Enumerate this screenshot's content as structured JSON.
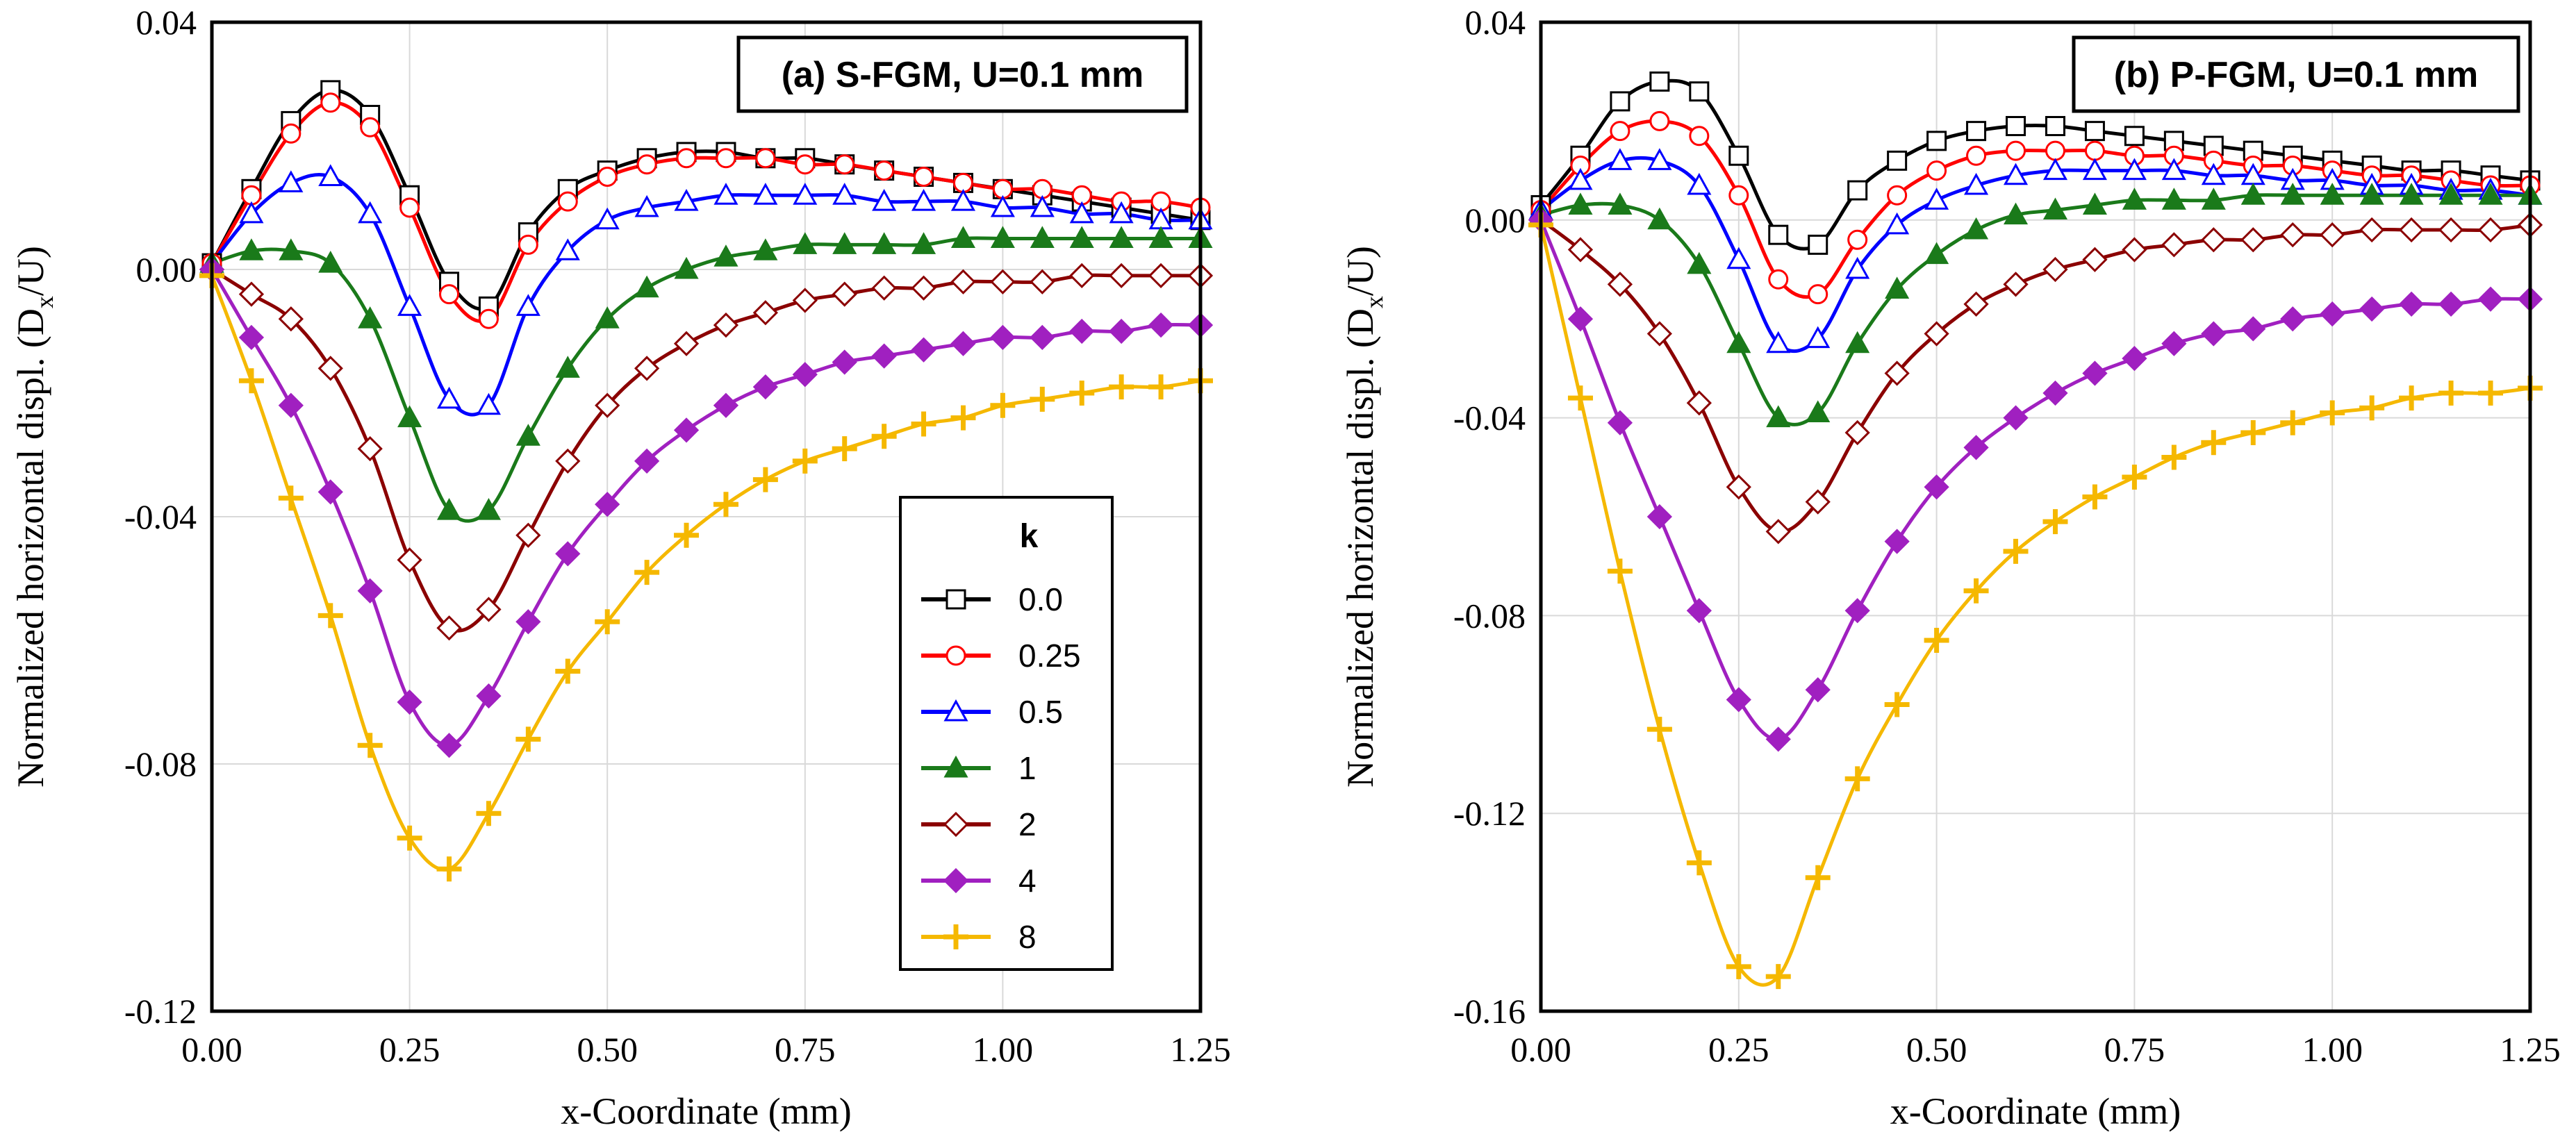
{
  "chart_data": [
    {
      "type": "line",
      "title": "(a) S-FGM, U=0.1 mm",
      "xlabel": "x-Coordinate (mm)",
      "ylabel": "Normalized horizontal displ. (Dx/U)",
      "ylabel_main": "Normalized horizontal displ. (D",
      "ylabel_sub": "x",
      "ylabel_tail": "/U)",
      "xlim": [
        0,
        1.25
      ],
      "ylim": [
        -0.12,
        0.04
      ],
      "xticks": [
        0,
        0.25,
        0.5,
        0.75,
        1.0,
        1.25
      ],
      "xtick_labels": [
        "0.00",
        "0.25",
        "0.50",
        "0.75",
        "1.00",
        "1.25"
      ],
      "yticks": [
        0.04,
        0.0,
        -0.04,
        -0.08,
        -0.12
      ],
      "ytick_labels": [
        "0.04",
        "0.00",
        "-0.04",
        "-0.08",
        "-0.12"
      ],
      "grid": true,
      "legend": {
        "title": "k",
        "placement": "lower-right"
      },
      "x": [
        0.0,
        0.05,
        0.1,
        0.15,
        0.2,
        0.25,
        0.3,
        0.35,
        0.4,
        0.45,
        0.5,
        0.55,
        0.6,
        0.65,
        0.7,
        0.75,
        0.8,
        0.85,
        0.9,
        0.95,
        1.0,
        1.05,
        1.1,
        1.15,
        1.2,
        1.25
      ],
      "series": [
        {
          "name": "0.0",
          "color": "#000000",
          "marker": "square",
          "values": [
            0.001,
            0.013,
            0.024,
            0.029,
            0.025,
            0.012,
            -0.002,
            -0.006,
            0.006,
            0.013,
            0.016,
            0.018,
            0.019,
            0.019,
            0.018,
            0.018,
            0.017,
            0.016,
            0.015,
            0.014,
            0.013,
            0.012,
            0.011,
            0.01,
            0.009,
            0.008
          ]
        },
        {
          "name": "0.25",
          "color": "#ff0000",
          "marker": "circle",
          "values": [
            0.001,
            0.012,
            0.022,
            0.027,
            0.023,
            0.01,
            -0.004,
            -0.008,
            0.004,
            0.011,
            0.015,
            0.017,
            0.018,
            0.018,
            0.018,
            0.017,
            0.017,
            0.016,
            0.015,
            0.014,
            0.013,
            0.013,
            0.012,
            0.011,
            0.011,
            0.01
          ]
        },
        {
          "name": "0.5",
          "color": "#0000ff",
          "marker": "triangle",
          "values": [
            0.001,
            0.009,
            0.014,
            0.015,
            0.009,
            -0.006,
            -0.021,
            -0.022,
            -0.006,
            0.003,
            0.008,
            0.01,
            0.011,
            0.012,
            0.012,
            0.012,
            0.012,
            0.011,
            0.011,
            0.011,
            0.01,
            0.01,
            0.009,
            0.009,
            0.008,
            0.008
          ]
        },
        {
          "name": "1",
          "color": "#1a7a1a",
          "marker": "triangle-filled",
          "values": [
            0.001,
            0.003,
            0.003,
            0.001,
            -0.008,
            -0.024,
            -0.039,
            -0.039,
            -0.027,
            -0.016,
            -0.008,
            -0.003,
            0.0,
            0.002,
            0.003,
            0.004,
            0.004,
            0.004,
            0.004,
            0.005,
            0.005,
            0.005,
            0.005,
            0.005,
            0.005,
            0.005
          ]
        },
        {
          "name": "2",
          "color": "#8b0000",
          "marker": "diamond",
          "values": [
            0.0,
            -0.004,
            -0.008,
            -0.016,
            -0.029,
            -0.047,
            -0.058,
            -0.055,
            -0.043,
            -0.031,
            -0.022,
            -0.016,
            -0.012,
            -0.009,
            -0.007,
            -0.005,
            -0.004,
            -0.003,
            -0.003,
            -0.002,
            -0.002,
            -0.002,
            -0.001,
            -0.001,
            -0.001,
            -0.001
          ]
        },
        {
          "name": "4",
          "color": "#a020c0",
          "marker": "diamond-filled",
          "values": [
            0.0,
            -0.011,
            -0.022,
            -0.036,
            -0.052,
            -0.07,
            -0.077,
            -0.069,
            -0.057,
            -0.046,
            -0.038,
            -0.031,
            -0.026,
            -0.022,
            -0.019,
            -0.017,
            -0.015,
            -0.014,
            -0.013,
            -0.012,
            -0.011,
            -0.011,
            -0.01,
            -0.01,
            -0.009,
            -0.009
          ]
        },
        {
          "name": "8",
          "color": "#f5b800",
          "marker": "plus",
          "values": [
            -0.001,
            -0.018,
            -0.037,
            -0.056,
            -0.077,
            -0.092,
            -0.097,
            -0.088,
            -0.076,
            -0.065,
            -0.057,
            -0.049,
            -0.043,
            -0.038,
            -0.034,
            -0.031,
            -0.029,
            -0.027,
            -0.025,
            -0.024,
            -0.022,
            -0.021,
            -0.02,
            -0.019,
            -0.019,
            -0.018
          ]
        }
      ]
    },
    {
      "type": "line",
      "title": "(b) P-FGM, U=0.1 mm",
      "xlabel": "x-Coordinate (mm)",
      "ylabel": "Normalized horizontal displ. (Dx/U)",
      "ylabel_main": "Normalized horizontal displ. (D",
      "ylabel_sub": "x",
      "ylabel_tail": "/U)",
      "xlim": [
        0,
        1.25
      ],
      "ylim": [
        -0.16,
        0.04
      ],
      "xticks": [
        0,
        0.25,
        0.5,
        0.75,
        1.0,
        1.25
      ],
      "xtick_labels": [
        "0.00",
        "0.25",
        "0.50",
        "0.75",
        "1.00",
        "1.25"
      ],
      "yticks": [
        0.04,
        0.0,
        -0.04,
        -0.08,
        -0.12,
        -0.16
      ],
      "ytick_labels": [
        "0.04",
        "0.00",
        "-0.04",
        "-0.08",
        "-0.12",
        "-0.16"
      ],
      "grid": true,
      "x": [
        0.0,
        0.05,
        0.1,
        0.15,
        0.2,
        0.25,
        0.3,
        0.35,
        0.4,
        0.45,
        0.5,
        0.55,
        0.6,
        0.65,
        0.7,
        0.75,
        0.8,
        0.85,
        0.9,
        0.95,
        1.0,
        1.05,
        1.1,
        1.15,
        1.2,
        1.25
      ],
      "series": [
        {
          "name": "0.0",
          "color": "#000000",
          "marker": "square",
          "values": [
            0.003,
            0.013,
            0.024,
            0.028,
            0.026,
            0.013,
            -0.003,
            -0.005,
            0.006,
            0.012,
            0.016,
            0.018,
            0.019,
            0.019,
            0.018,
            0.017,
            0.016,
            0.015,
            0.014,
            0.013,
            0.012,
            0.011,
            0.01,
            0.01,
            0.009,
            0.008
          ]
        },
        {
          "name": "0.25",
          "color": "#ff0000",
          "marker": "circle",
          "values": [
            0.002,
            0.011,
            0.018,
            0.02,
            0.017,
            0.005,
            -0.012,
            -0.015,
            -0.004,
            0.005,
            0.01,
            0.013,
            0.014,
            0.014,
            0.014,
            0.013,
            0.013,
            0.012,
            0.011,
            0.011,
            0.01,
            0.009,
            0.009,
            0.008,
            0.007,
            0.007
          ]
        },
        {
          "name": "0.5",
          "color": "#0000ff",
          "marker": "triangle",
          "values": [
            0.002,
            0.008,
            0.012,
            0.012,
            0.007,
            -0.008,
            -0.025,
            -0.024,
            -0.01,
            -0.001,
            0.004,
            0.007,
            0.009,
            0.01,
            0.01,
            0.01,
            0.01,
            0.009,
            0.009,
            0.008,
            0.008,
            0.007,
            0.007,
            0.006,
            0.006,
            0.005
          ]
        },
        {
          "name": "1",
          "color": "#1a7a1a",
          "marker": "triangle-filled",
          "values": [
            0.001,
            0.003,
            0.003,
            0.0,
            -0.009,
            -0.025,
            -0.04,
            -0.039,
            -0.025,
            -0.014,
            -0.007,
            -0.002,
            0.001,
            0.002,
            0.003,
            0.004,
            0.004,
            0.004,
            0.005,
            0.005,
            0.005,
            0.005,
            0.005,
            0.005,
            0.005,
            0.005
          ]
        },
        {
          "name": "2",
          "color": "#8b0000",
          "marker": "diamond",
          "values": [
            0.0,
            -0.006,
            -0.013,
            -0.023,
            -0.037,
            -0.054,
            -0.063,
            -0.057,
            -0.043,
            -0.031,
            -0.023,
            -0.017,
            -0.013,
            -0.01,
            -0.008,
            -0.006,
            -0.005,
            -0.004,
            -0.004,
            -0.003,
            -0.003,
            -0.002,
            -0.002,
            -0.002,
            -0.002,
            -0.001
          ]
        },
        {
          "name": "4",
          "color": "#a020c0",
          "marker": "diamond-filled",
          "values": [
            0.0,
            -0.02,
            -0.041,
            -0.06,
            -0.079,
            -0.097,
            -0.105,
            -0.095,
            -0.079,
            -0.065,
            -0.054,
            -0.046,
            -0.04,
            -0.035,
            -0.031,
            -0.028,
            -0.025,
            -0.023,
            -0.022,
            -0.02,
            -0.019,
            -0.018,
            -0.017,
            -0.017,
            -0.016,
            -0.016
          ]
        },
        {
          "name": "8",
          "color": "#f5b800",
          "marker": "plus",
          "values": [
            -0.001,
            -0.036,
            -0.071,
            -0.103,
            -0.13,
            -0.151,
            -0.153,
            -0.133,
            -0.113,
            -0.098,
            -0.085,
            -0.075,
            -0.067,
            -0.061,
            -0.056,
            -0.052,
            -0.048,
            -0.045,
            -0.043,
            -0.041,
            -0.039,
            -0.038,
            -0.036,
            -0.035,
            -0.035,
            -0.034
          ]
        }
      ]
    }
  ]
}
